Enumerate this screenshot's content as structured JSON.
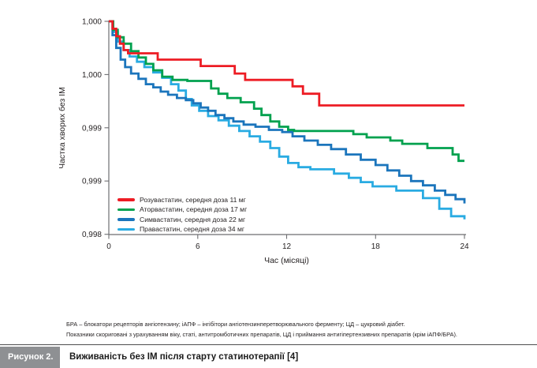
{
  "chart_data": {
    "type": "line",
    "subtype": "kaplan-meier-step",
    "title": "",
    "xlabel": "Час (місяці)",
    "ylabel": "Частка хворих без ІМ",
    "xlim": [
      0,
      24
    ],
    "ylim": [
      0.998,
      1.0
    ],
    "grid": false,
    "legend_position": "inside-bottom-left",
    "xticks": [
      0,
      6,
      12,
      18,
      24
    ],
    "xtick_labels": [
      "0",
      "6",
      "12",
      "18",
      "24"
    ],
    "ytick_values": [
      1.0,
      0.9995,
      0.999,
      0.9985,
      0.998
    ],
    "ytick_labels": [
      "1,000",
      "1,000",
      "0,999",
      "0,999",
      "0,998"
    ],
    "series": [
      {
        "name": "Розувастатин, середня доза 11 мг",
        "color": "#ed1c24",
        "points": [
          [
            0,
            1.0
          ],
          [
            0.25,
            0.99993
          ],
          [
            0.5,
            0.99986
          ],
          [
            0.75,
            0.99979
          ],
          [
            1.0,
            0.99973
          ],
          [
            1.3,
            0.9997
          ],
          [
            3.3,
            0.99964
          ],
          [
            6.2,
            0.99958
          ],
          [
            8.5,
            0.99951
          ],
          [
            9.2,
            0.99945
          ],
          [
            12.4,
            0.99939
          ],
          [
            13.1,
            0.99932
          ],
          [
            14.2,
            0.99921
          ],
          [
            24,
            0.99921
          ]
        ]
      },
      {
        "name": "Аторвастатин, середня доза 17 мг",
        "color": "#00a14e",
        "points": [
          [
            0,
            1.0
          ],
          [
            0.3,
            0.99992
          ],
          [
            0.6,
            0.99985
          ],
          [
            1.0,
            0.99979
          ],
          [
            1.5,
            0.99972
          ],
          [
            2.0,
            0.99966
          ],
          [
            2.5,
            0.9996
          ],
          [
            3.0,
            0.99954
          ],
          [
            3.6,
            0.99948
          ],
          [
            4.3,
            0.99945
          ],
          [
            5.3,
            0.99944
          ],
          [
            6.9,
            0.99937
          ],
          [
            7.4,
            0.99932
          ],
          [
            8.0,
            0.99928
          ],
          [
            8.9,
            0.99924
          ],
          [
            9.8,
            0.99918
          ],
          [
            10.3,
            0.99912
          ],
          [
            10.9,
            0.99906
          ],
          [
            11.5,
            0.99901
          ],
          [
            12.1,
            0.99898
          ],
          [
            12.5,
            0.99897
          ],
          [
            16.5,
            0.99894
          ],
          [
            17.4,
            0.99891
          ],
          [
            19.0,
            0.99888
          ],
          [
            19.8,
            0.99885
          ],
          [
            21.5,
            0.99881
          ],
          [
            23.2,
            0.99875
          ],
          [
            23.6,
            0.99869
          ],
          [
            24,
            0.99869
          ]
        ]
      },
      {
        "name": "Симвастатин, середня доза 22 мг",
        "color": "#1b75bc",
        "points": [
          [
            0,
            1.0
          ],
          [
            0.25,
            0.99987
          ],
          [
            0.5,
            0.99975
          ],
          [
            0.8,
            0.99964
          ],
          [
            1.1,
            0.99957
          ],
          [
            1.5,
            0.99951
          ],
          [
            2.0,
            0.99946
          ],
          [
            2.5,
            0.99941
          ],
          [
            3.0,
            0.99938
          ],
          [
            3.5,
            0.99934
          ],
          [
            4.0,
            0.99931
          ],
          [
            4.6,
            0.99928
          ],
          [
            5.2,
            0.99926
          ],
          [
            5.7,
            0.99923
          ],
          [
            6.2,
            0.99919
          ],
          [
            6.7,
            0.99916
          ],
          [
            7.2,
            0.99912
          ],
          [
            7.8,
            0.99909
          ],
          [
            8.4,
            0.99906
          ],
          [
            9.1,
            0.99903
          ],
          [
            9.9,
            0.99901
          ],
          [
            10.8,
            0.99898
          ],
          [
            11.7,
            0.99896
          ],
          [
            12.4,
            0.99892
          ],
          [
            13.2,
            0.99888
          ],
          [
            14.1,
            0.99884
          ],
          [
            15.0,
            0.9988
          ],
          [
            16.0,
            0.99875
          ],
          [
            17.0,
            0.9987
          ],
          [
            18.0,
            0.99865
          ],
          [
            18.8,
            0.9986
          ],
          [
            19.6,
            0.99855
          ],
          [
            20.4,
            0.9985
          ],
          [
            21.2,
            0.99846
          ],
          [
            22.0,
            0.99841
          ],
          [
            22.7,
            0.99837
          ],
          [
            23.4,
            0.99833
          ],
          [
            24,
            0.99829
          ]
        ]
      },
      {
        "name": "Правастатин, середня доза 34 мг",
        "color": "#29abe2",
        "points": [
          [
            0,
            1.0
          ],
          [
            0.3,
            0.9999
          ],
          [
            0.6,
            0.99981
          ],
          [
            1.0,
            0.99973
          ],
          [
            1.4,
            0.99967
          ],
          [
            1.9,
            0.99962
          ],
          [
            2.4,
            0.99957
          ],
          [
            3.0,
            0.99952
          ],
          [
            3.6,
            0.99947
          ],
          [
            4.2,
            0.99941
          ],
          [
            4.7,
            0.99935
          ],
          [
            5.2,
            0.99927
          ],
          [
            5.6,
            0.99921
          ],
          [
            6.1,
            0.99916
          ],
          [
            6.7,
            0.99911
          ],
          [
            7.4,
            0.99907
          ],
          [
            8.1,
            0.99902
          ],
          [
            8.8,
            0.99897
          ],
          [
            9.5,
            0.99892
          ],
          [
            10.2,
            0.99887
          ],
          [
            10.9,
            0.99881
          ],
          [
            11.5,
            0.99873
          ],
          [
            12.1,
            0.99867
          ],
          [
            12.8,
            0.99863
          ],
          [
            13.6,
            0.99861
          ],
          [
            15.2,
            0.99857
          ],
          [
            16.2,
            0.99853
          ],
          [
            17.0,
            0.99849
          ],
          [
            17.8,
            0.99845
          ],
          [
            19.4,
            0.99841
          ],
          [
            21.2,
            0.99834
          ],
          [
            22.3,
            0.99824
          ],
          [
            23.1,
            0.99817
          ],
          [
            24,
            0.99814
          ]
        ]
      }
    ]
  },
  "footnotes": {
    "line1": "БРА – блокатори рецепторів ангіотензину; іАПФ – інгібітори ангіотензинперетворювального ферменту; ЦД – цукровий діабет.",
    "line2": "Показники скориговані з урахуванням віку, статі, антитромботичних препаратів, ЦД і приймання антигіпертензивних препаратів (крім іАПФ/БРА)."
  },
  "caption": {
    "label": "Рисунок 2.",
    "text": "Виживаність без ІМ після старту статинотерапії [4]"
  }
}
